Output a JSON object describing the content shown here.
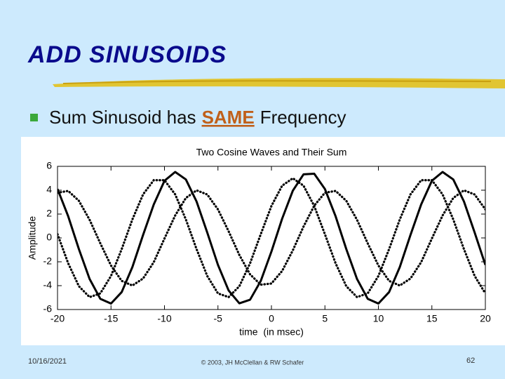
{
  "slide": {
    "title": "ADD SINUSOIDS",
    "bullet": [
      "Sum Sinusoid has",
      "SAME",
      "Frequency"
    ],
    "footer": {
      "date": "10/16/2021",
      "credit": "© 2003, JH McClellan & RW Schafer",
      "page": "62"
    }
  },
  "chart_data": {
    "type": "line",
    "title": "Two Cosine Waves and Their Sum",
    "x_label": "time  (in msec)",
    "y_label": "Amplitude",
    "x": [
      -20,
      -19,
      -18,
      -17,
      -16,
      -15,
      -14,
      -13,
      -12,
      -11,
      -10,
      -9,
      -8,
      -7,
      -6,
      -5,
      -4,
      -3,
      -2,
      -1,
      0,
      1,
      2,
      3,
      4,
      5,
      6,
      7,
      8,
      9,
      10,
      11,
      12,
      13,
      14,
      15,
      16,
      17,
      18,
      19,
      20
    ],
    "series": [
      {
        "color": "#000000",
        "line_style": "dotted",
        "values": [
          0.31,
          -2.13,
          -4.05,
          -4.96,
          -4.65,
          -3.19,
          -0.94,
          1.55,
          3.65,
          4.84,
          4.84,
          3.65,
          1.55,
          -0.94,
          -3.19,
          -4.65,
          -4.96,
          -4.05,
          -2.13,
          0.31,
          2.68,
          4.38,
          5.0,
          4.38,
          2.68,
          0.31,
          -2.13,
          -4.05,
          -4.96,
          -4.65,
          -3.19,
          -0.94,
          1.55,
          3.65,
          4.84,
          4.84,
          3.65,
          1.55,
          -0.94,
          -3.19,
          -4.65
        ]
      },
      {
        "color": "#000000",
        "line_style": "dotted",
        "values": [
          3.79,
          3.94,
          3.11,
          1.52,
          -0.45,
          -2.31,
          -3.6,
          -3.99,
          -3.4,
          -2.03,
          -0.05,
          1.88,
          3.35,
          3.99,
          3.64,
          2.39,
          0.55,
          -1.43,
          -3.05,
          -3.92,
          -3.82,
          -2.77,
          -1.04,
          0.95,
          2.7,
          3.79,
          3.94,
          3.11,
          1.52,
          -0.45,
          -2.31,
          -3.6,
          -3.99,
          -3.4,
          -2.03,
          -0.05,
          1.88,
          3.35,
          3.99,
          3.64,
          2.39
        ]
      },
      {
        "color": "#000000",
        "line_style": "solid",
        "values": [
          4.1,
          1.81,
          -0.94,
          -3.44,
          -5.1,
          -5.5,
          -4.54,
          -2.44,
          0.25,
          2.81,
          4.79,
          5.53,
          4.9,
          3.05,
          0.45,
          -2.26,
          -4.41,
          -5.48,
          -5.18,
          -3.61,
          -1.14,
          1.61,
          3.96,
          5.33,
          5.38,
          4.1,
          1.81,
          -0.94,
          -3.44,
          -5.1,
          -5.5,
          -4.54,
          -2.44,
          0.25,
          2.81,
          4.79,
          5.53,
          4.9,
          3.05,
          0.45,
          -2.26
        ]
      }
    ],
    "xlim": [
      -20,
      20
    ],
    "xticks": [
      -20,
      -15,
      -10,
      -5,
      0,
      5,
      10,
      15,
      20
    ],
    "ylim": [
      -6,
      6
    ],
    "yticks": [
      -6,
      -4,
      -2,
      0,
      2,
      4,
      6
    ],
    "grid": false
  }
}
